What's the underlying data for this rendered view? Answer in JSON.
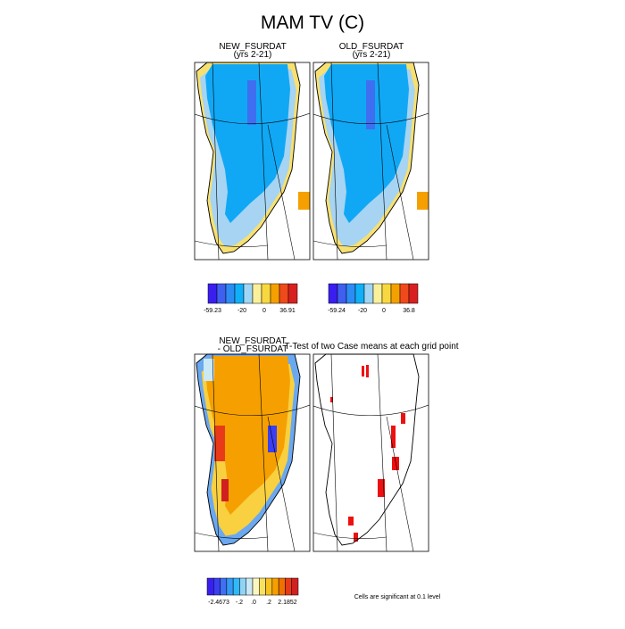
{
  "title": "MAM TV (C)",
  "panels": [
    {
      "title": "NEW_FSURDAT",
      "subtitle": "(yrs 2-21)"
    },
    {
      "title": "OLD_FSURDAT",
      "subtitle": "(yrs 2-21)"
    },
    {
      "title": "NEW_FSURDAT",
      "subtitle": "- OLD_FSURDAT"
    },
    {
      "title": "T-Test of two Case means at each grid point"
    }
  ],
  "colorbars": [
    {
      "colors": [
        "#3a1ef0",
        "#3f5ff0",
        "#2c8cf5",
        "#10b0f8",
        "#9fd6f5",
        "#fbf09a",
        "#f8d840",
        "#f5a000",
        "#f04a1a",
        "#d82020"
      ],
      "labels": [
        "-59.23",
        "-20",
        "0",
        "36.91"
      ]
    },
    {
      "colors": [
        "#3a1ef0",
        "#3f5ff0",
        "#2c8cf5",
        "#10b0f8",
        "#9fd6f5",
        "#fbf09a",
        "#f8d840",
        "#f5a000",
        "#f04a1a",
        "#d82020"
      ],
      "labels": [
        "-59.24",
        "-20",
        "0",
        "36.8"
      ]
    },
    {
      "colors": [
        "#3a1ef0",
        "#3a3ff2",
        "#3f6ff2",
        "#3498f5",
        "#30b8f8",
        "#90d4f5",
        "#cbe9f5",
        "#fbf6c0",
        "#f8e060",
        "#f8c020",
        "#f5a000",
        "#f07000",
        "#e83a18",
        "#d02020"
      ],
      "labels": [
        "-2.4673",
        "-.2",
        ".0",
        ".2",
        "2.1852"
      ]
    }
  ],
  "note": "Cells are significant at 0.1 level"
}
